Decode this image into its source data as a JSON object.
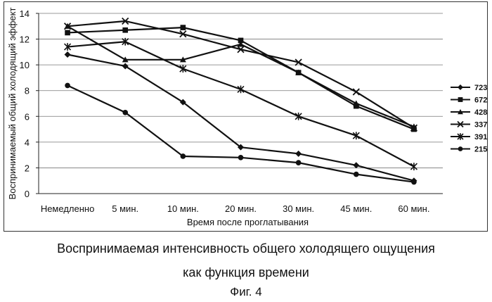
{
  "chart_data": {
    "type": "line",
    "title": "",
    "xlabel": "Время после проглатывания",
    "ylabel": "Воспринимаемый общий холодящий эффект",
    "categories": [
      "Немедленно",
      "5 мин.",
      "10 мин.",
      "20 мин.",
      "30 мин.",
      "45 мин.",
      "60 мин."
    ],
    "yticks": [
      0,
      2,
      4,
      6,
      8,
      10,
      12,
      14
    ],
    "ylim": [
      0,
      14
    ],
    "grid": true,
    "legend_position": "right",
    "series": [
      {
        "name": "723",
        "marker": "diamond",
        "values": [
          10.8,
          9.9,
          7.1,
          3.6,
          3.1,
          2.2,
          1.0
        ]
      },
      {
        "name": "672",
        "marker": "square",
        "values": [
          12.5,
          12.7,
          12.9,
          11.9,
          9.4,
          6.8,
          5.0
        ]
      },
      {
        "name": "428",
        "marker": "triangle",
        "values": [
          13.0,
          10.4,
          10.4,
          11.6,
          9.4,
          7.0,
          5.2
        ]
      },
      {
        "name": "337",
        "marker": "x",
        "values": [
          13.0,
          13.4,
          12.4,
          11.2,
          10.2,
          7.9,
          5.1
        ]
      },
      {
        "name": "391",
        "marker": "star",
        "values": [
          11.4,
          11.8,
          9.7,
          8.1,
          6.0,
          4.5,
          2.1
        ]
      },
      {
        "name": "215",
        "marker": "circle",
        "values": [
          8.4,
          6.3,
          2.9,
          2.8,
          2.4,
          1.5,
          0.9
        ]
      }
    ]
  },
  "caption": {
    "line1": "Воспринимаемая интенсивность общего холодящего ощущения",
    "line2": "как функция времени",
    "figure": "Фиг. 4"
  }
}
